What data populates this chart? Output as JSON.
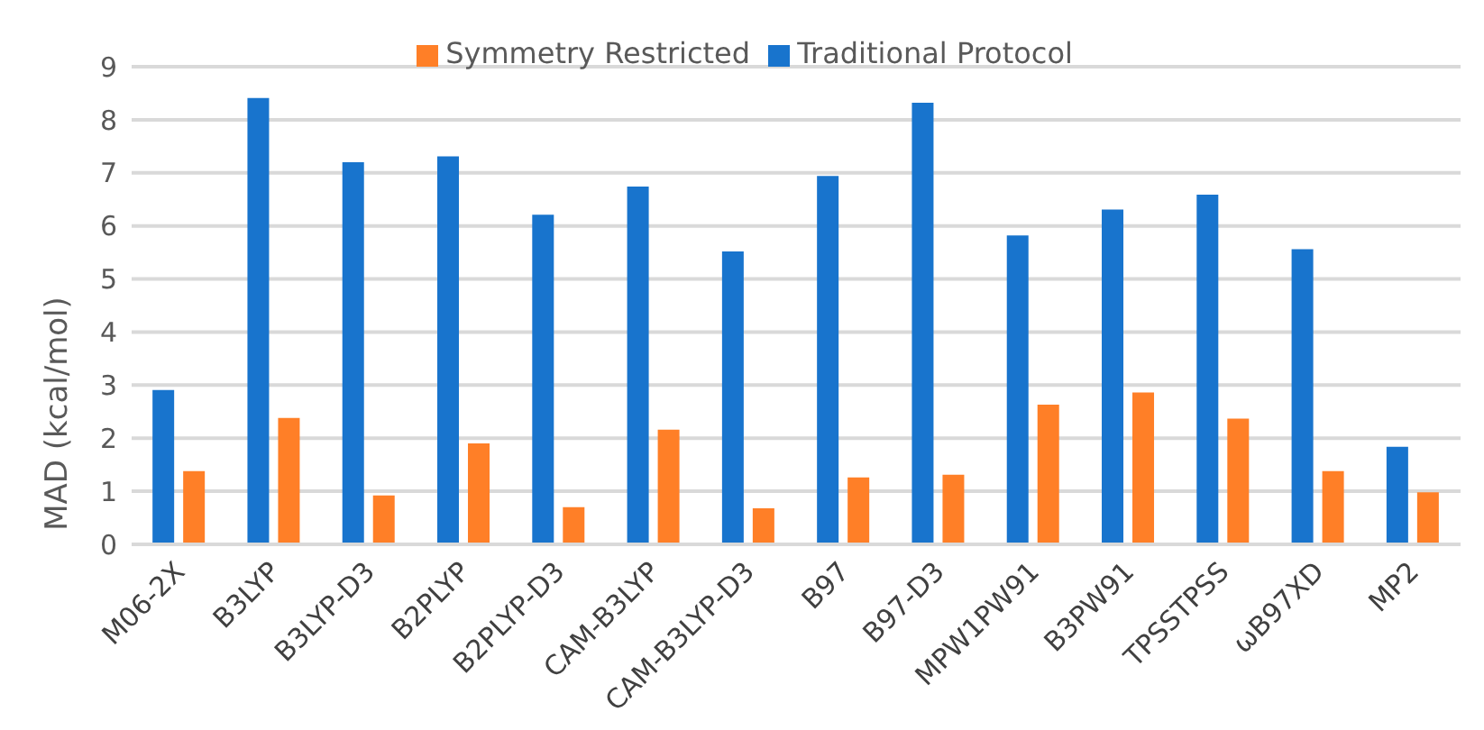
{
  "chart_data": {
    "type": "bar",
    "ylabel": "MAD (kcal/mol)",
    "categories": [
      "M06-2X",
      "B3LYP",
      "B3LYP-D3",
      "B2PLYP",
      "B2PLYP-D3",
      "CAM-B3LYP",
      "CAM-B3LYP-D3",
      "B97",
      "B97-D3",
      "MPW1PW91",
      "B3PW91",
      "TPSSTPSS",
      "ωB97XD",
      "MP2"
    ],
    "series": [
      {
        "name": "Traditional Protocol",
        "color": "#1874cd",
        "values": [
          2.91,
          8.41,
          7.2,
          7.31,
          6.21,
          6.74,
          5.52,
          6.94,
          8.32,
          5.82,
          6.31,
          6.59,
          5.56,
          1.84
        ]
      },
      {
        "name": "Symmetry Restricted",
        "color": "#ff7f27",
        "values": [
          1.38,
          2.38,
          0.92,
          1.9,
          0.7,
          2.16,
          0.68,
          1.26,
          1.31,
          2.63,
          2.86,
          2.37,
          1.38,
          0.98
        ]
      }
    ],
    "ylim": [
      0,
      9
    ],
    "yticks": [
      0,
      1,
      2,
      3,
      4,
      5,
      6,
      7,
      8,
      9
    ],
    "grid": "y",
    "legend": "top"
  }
}
